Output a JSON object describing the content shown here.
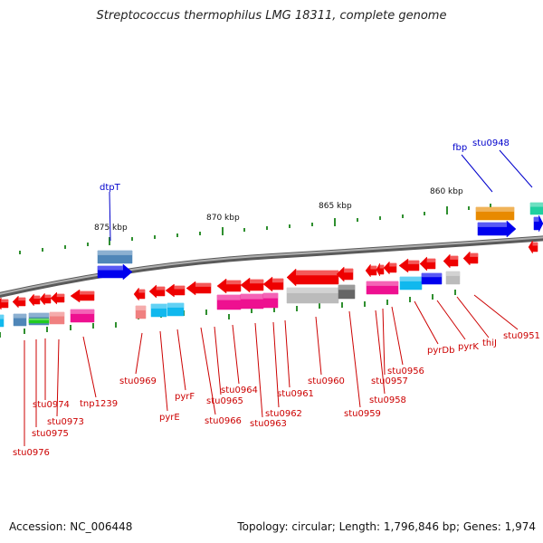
{
  "title": "Streptococcus thermophilus LMG 18311, complete genome",
  "footer": {
    "accession": "Accession: NC_006448",
    "summary": "Topology: circular; Length: 1,796,846 bp; Genes: 1,974"
  },
  "colors": {
    "backbone": "#8a8a8a",
    "tick": "#2f8f2f",
    "gene_label_red": "#cc0000",
    "gene_label_blue": "#0000cc",
    "red": "#ee0000",
    "blue": "#0000ee",
    "steel": "#4f86b8",
    "orange": "#e88a00",
    "teal": "#20d0a0",
    "cyan": "#10b8ee",
    "magenta": "#ee1090",
    "gray": "#bbbbbb",
    "darkgray": "#666666",
    "pink": "#f08080",
    "green": "#22cc22"
  },
  "scale_labels": [
    {
      "text": "875 kbp",
      "kbp": 875
    },
    {
      "text": "870 kbp",
      "kbp": 870
    },
    {
      "text": "865 kbp",
      "kbp": 865
    },
    {
      "text": "860 kbp",
      "kbp": 860
    }
  ],
  "gene_labels": [
    {
      "text": "dtpT",
      "color": "blue"
    },
    {
      "text": "fbp",
      "color": "blue"
    },
    {
      "text": "stu0948",
      "color": "blue"
    },
    {
      "text": "stu0976",
      "color": "red"
    },
    {
      "text": "stu0975",
      "color": "red"
    },
    {
      "text": "stu0974",
      "color": "red"
    },
    {
      "text": "stu0973",
      "color": "red"
    },
    {
      "text": "tnp1239",
      "color": "red"
    },
    {
      "text": "stu0969",
      "color": "red"
    },
    {
      "text": "pyrE",
      "color": "red"
    },
    {
      "text": "pyrF",
      "color": "red"
    },
    {
      "text": "stu0966",
      "color": "red"
    },
    {
      "text": "stu0965",
      "color": "red"
    },
    {
      "text": "stu0964",
      "color": "red"
    },
    {
      "text": "stu0963",
      "color": "red"
    },
    {
      "text": "stu0962",
      "color": "red"
    },
    {
      "text": "stu0961",
      "color": "red"
    },
    {
      "text": "stu0960",
      "color": "red"
    },
    {
      "text": "stu0959",
      "color": "red"
    },
    {
      "text": "stu0958",
      "color": "red"
    },
    {
      "text": "stu0957",
      "color": "red"
    },
    {
      "text": "stu0956",
      "color": "red"
    },
    {
      "text": "pyrDb",
      "color": "red"
    },
    {
      "text": "pyrK",
      "color": "red"
    },
    {
      "text": "thiJ",
      "color": "red"
    },
    {
      "text": "stu0951",
      "color": "red"
    }
  ]
}
